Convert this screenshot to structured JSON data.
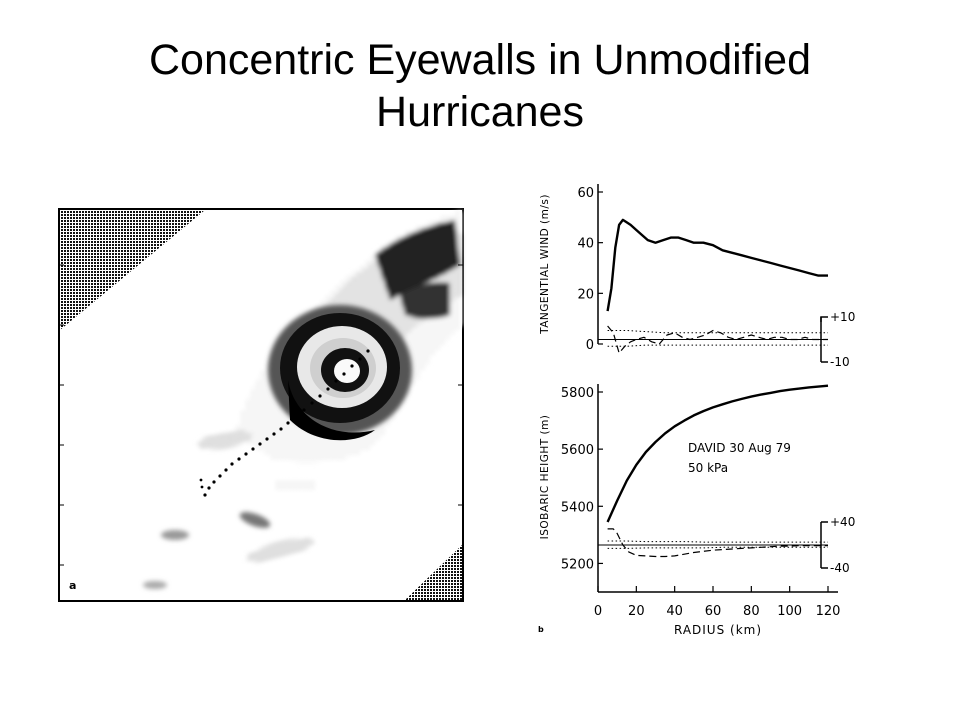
{
  "slide": {
    "title_line1": "Concentric Eyewalls in Unmodified",
    "title_line2": "Hurricanes"
  },
  "figure_a": {
    "panel_label": "a"
  },
  "figure_b": {
    "panel_label": "b",
    "annotation_line1": "DAVID  30 Aug 79",
    "annotation_line2": "50 kPa"
  },
  "chart_data": [
    {
      "type": "line",
      "ylabel": "TANGENTIAL  WIND  (m/s)",
      "xlim": [
        0,
        120
      ],
      "ylim": [
        0,
        60
      ],
      "yticks": [
        0,
        20,
        40,
        60
      ],
      "secondary_ylim": [
        -10,
        10
      ],
      "secondary_yticks": [
        "+10",
        "-10"
      ],
      "series": [
        {
          "style": "solid",
          "x": [
            5,
            7,
            9,
            11,
            13,
            15,
            17,
            20,
            23,
            26,
            30,
            34,
            38,
            42,
            46,
            50,
            55,
            60,
            65,
            70,
            75,
            80,
            85,
            90,
            95,
            100,
            105,
            110,
            115,
            120
          ],
          "values": [
            13,
            22,
            38,
            47,
            49,
            48,
            47,
            45,
            43,
            41,
            40,
            41,
            42,
            42,
            41,
            40,
            40,
            39,
            37,
            36,
            35,
            34,
            33,
            32,
            31,
            30,
            29,
            28,
            27,
            27
          ]
        },
        {
          "style": "dashed",
          "x": [
            5,
            8,
            11,
            14,
            17,
            20,
            24,
            28,
            32,
            36,
            40,
            44,
            48,
            52,
            56,
            60,
            64,
            68,
            72,
            76,
            80,
            84,
            88,
            92,
            96,
            100,
            104,
            108,
            112,
            116,
            120
          ],
          "values": [
            6,
            3,
            -6,
            -3,
            -1,
            0,
            1,
            -1,
            -2,
            2,
            3,
            1,
            0,
            1,
            2,
            4,
            3,
            1,
            0,
            1,
            2,
            1,
            0,
            1,
            1,
            0,
            0,
            1,
            0,
            0,
            0
          ]
        },
        {
          "style": "dotted",
          "x": [
            5,
            15,
            25,
            35,
            45,
            55,
            65,
            75,
            85,
            95,
            105,
            115,
            120
          ],
          "values": [
            4,
            4,
            3.5,
            3,
            3,
            3,
            3,
            3,
            3,
            3,
            3,
            3,
            3
          ]
        },
        {
          "style": "dotted",
          "x": [
            5,
            15,
            25,
            35,
            45,
            55,
            65,
            75,
            85,
            95,
            105,
            115,
            120
          ],
          "values": [
            -3,
            -3,
            -2.5,
            -2.5,
            -2.5,
            -2.5,
            -2.5,
            -2.5,
            -2.5,
            -2.5,
            -2.5,
            -2.5,
            -2.5
          ]
        }
      ]
    },
    {
      "type": "line",
      "ylabel": "ISOBARIC  HEIGHT  (m)",
      "xlabel": "RADIUS  (km)",
      "xlim": [
        0,
        120
      ],
      "xticks": [
        0,
        20,
        40,
        60,
        80,
        100,
        120
      ],
      "ylim": [
        5100,
        5800
      ],
      "yticks": [
        5200,
        5400,
        5600,
        5800
      ],
      "secondary_ylim": [
        -40,
        40
      ],
      "secondary_yticks": [
        "+40",
        "-40"
      ],
      "series": [
        {
          "style": "solid",
          "x": [
            5,
            10,
            15,
            20,
            25,
            30,
            35,
            40,
            45,
            50,
            55,
            60,
            65,
            70,
            75,
            80,
            85,
            90,
            95,
            100,
            105,
            110,
            115,
            120
          ],
          "values": [
            5345,
            5420,
            5490,
            5545,
            5590,
            5625,
            5655,
            5680,
            5700,
            5718,
            5733,
            5746,
            5757,
            5767,
            5776,
            5784,
            5791,
            5797,
            5803,
            5808,
            5812,
            5816,
            5819,
            5822
          ]
        },
        {
          "style": "dashed",
          "x": [
            5,
            8,
            10,
            13,
            16,
            20,
            25,
            30,
            35,
            40,
            45,
            50,
            55,
            60,
            65,
            70,
            75,
            80,
            85,
            90,
            95,
            100,
            105,
            110,
            115,
            120
          ],
          "values": [
            28,
            28,
            20,
            0,
            -12,
            -18,
            -19,
            -20,
            -20,
            -19,
            -16,
            -13,
            -11,
            -9,
            -8,
            -7,
            -6,
            -5,
            -4,
            -3,
            -2,
            -2,
            -1,
            -1,
            -1,
            -1
          ]
        },
        {
          "style": "dotted",
          "x": [
            5,
            15,
            25,
            35,
            45,
            55,
            65,
            75,
            85,
            95,
            105,
            115,
            120
          ],
          "values": [
            7,
            7,
            6,
            6,
            6,
            5,
            5,
            5,
            5,
            5,
            5,
            5,
            5
          ]
        },
        {
          "style": "dotted",
          "x": [
            5,
            15,
            25,
            35,
            45,
            55,
            65,
            75,
            85,
            95,
            105,
            115,
            120
          ],
          "values": [
            -6,
            -6,
            -5,
            -5,
            -5,
            -5,
            -4,
            -4,
            -4,
            -4,
            -4,
            -4,
            -4
          ]
        }
      ]
    }
  ]
}
